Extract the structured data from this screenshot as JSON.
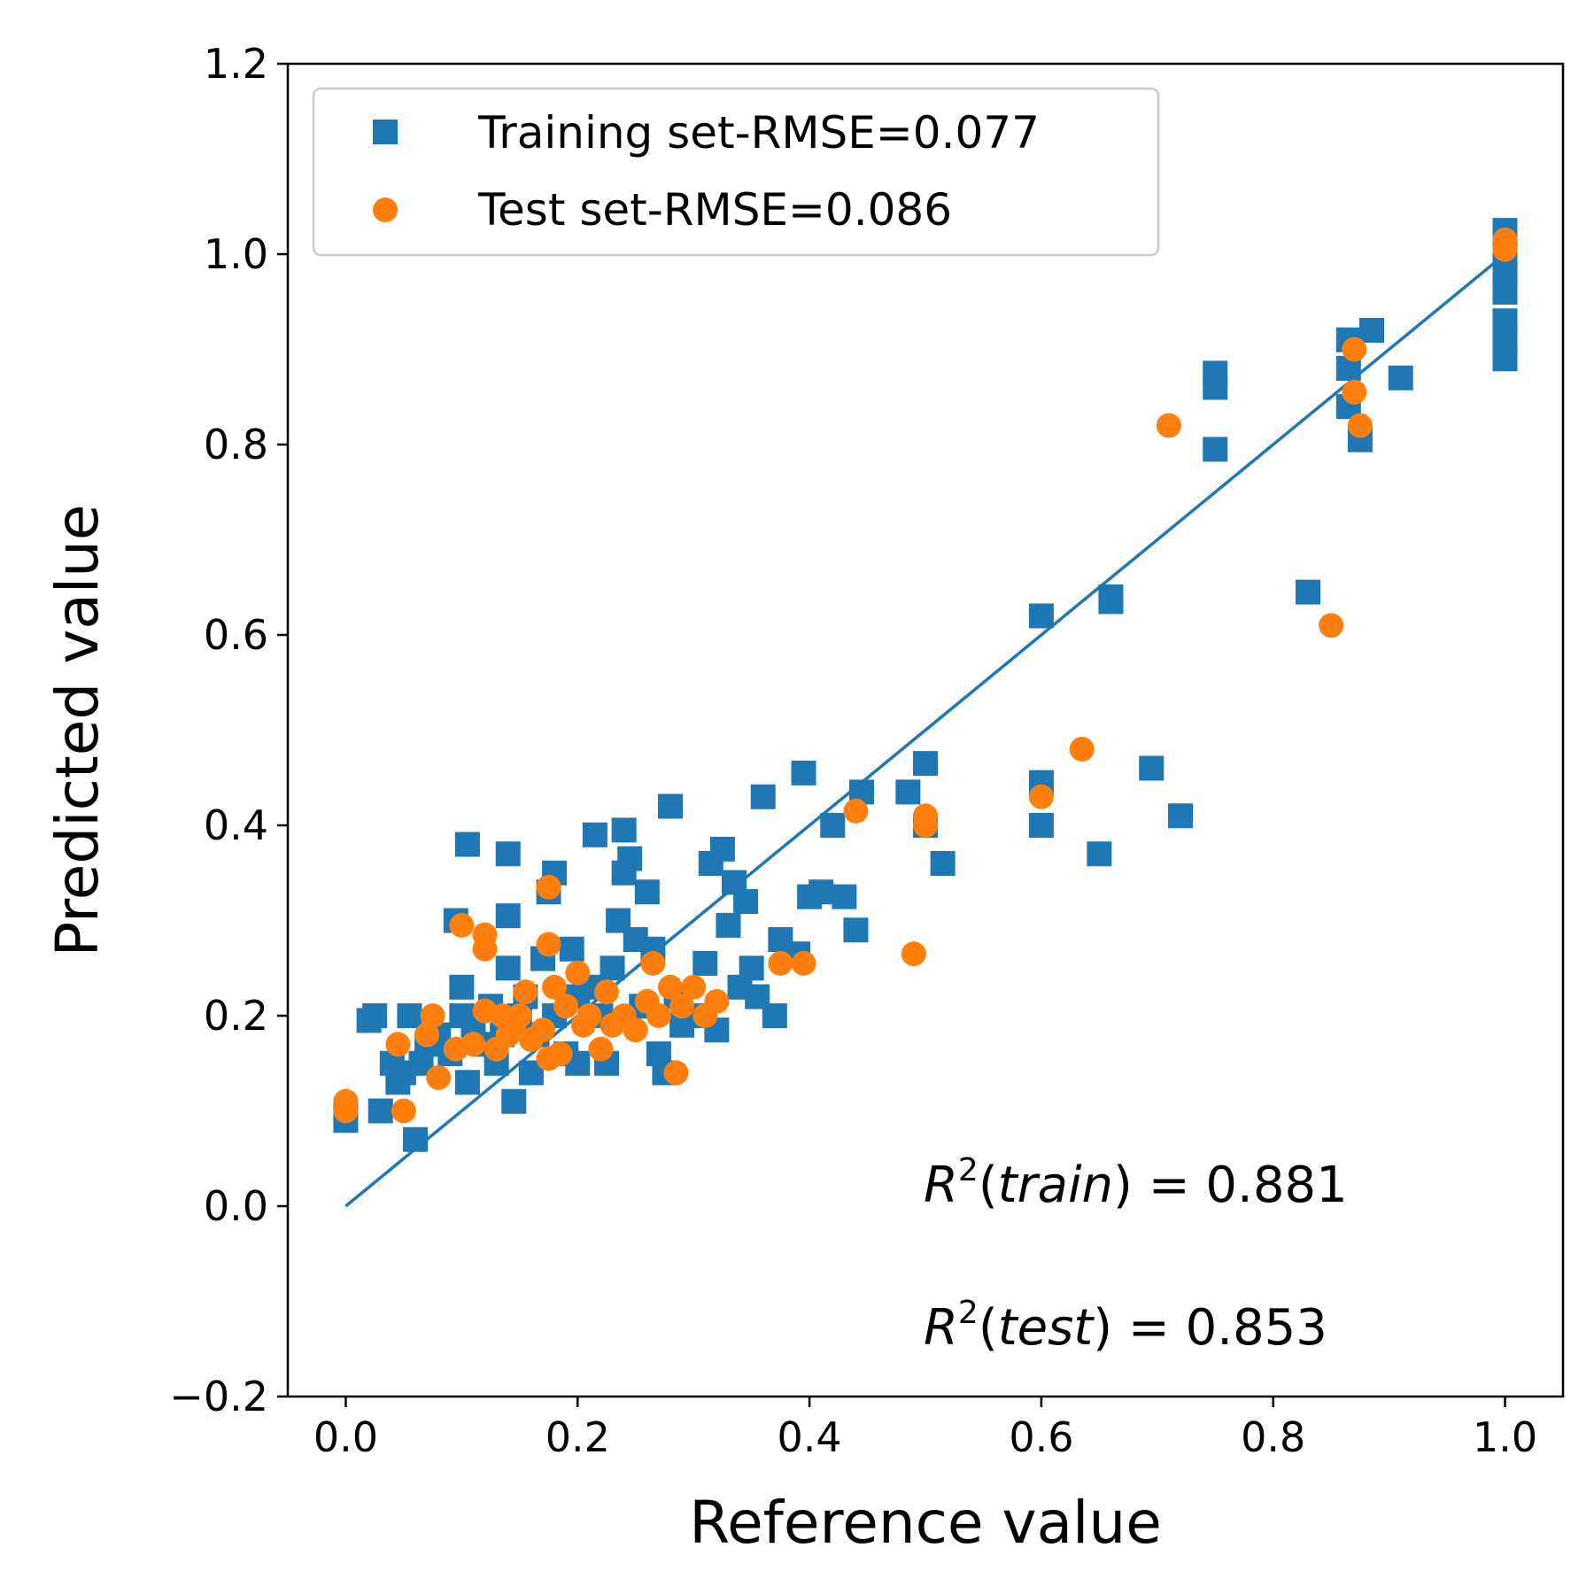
{
  "chart_data": {
    "type": "scatter",
    "xlabel": "Reference value",
    "ylabel": "Predicted value",
    "xlim": [
      -0.05,
      1.05
    ],
    "ylim": [
      -0.2,
      1.2
    ],
    "xticks": [
      "0.0",
      "0.2",
      "0.4",
      "0.6",
      "0.8",
      "1.0"
    ],
    "yticks": [
      "−0.2",
      "0.0",
      "0.2",
      "0.4",
      "0.6",
      "0.8",
      "1.0",
      "1.2"
    ],
    "xtick_values": [
      0.0,
      0.2,
      0.4,
      0.6,
      0.8,
      1.0
    ],
    "ytick_values": [
      -0.2,
      0.0,
      0.2,
      0.4,
      0.6,
      0.8,
      1.0,
      1.2
    ],
    "legend_position": "upper-left",
    "reference_line": {
      "x": [
        0,
        1
      ],
      "y": [
        0,
        1
      ],
      "color": "#1f77b4"
    },
    "annotations": [
      {
        "prefix": "R",
        "sup": "2",
        "label": "train",
        "value": "= 0.881"
      },
      {
        "prefix": "R",
        "sup": "2",
        "label": "test",
        "value": "= 0.853"
      }
    ],
    "series": [
      {
        "name": "Training set-RMSE=0.077",
        "marker": "square",
        "color": "#1f77b4",
        "points": [
          [
            0.0,
            0.09
          ],
          [
            0.0,
            0.1
          ],
          [
            0.02,
            0.195
          ],
          [
            0.025,
            0.2
          ],
          [
            0.03,
            0.1
          ],
          [
            0.04,
            0.15
          ],
          [
            0.045,
            0.13
          ],
          [
            0.05,
            0.14
          ],
          [
            0.055,
            0.2
          ],
          [
            0.06,
            0.07
          ],
          [
            0.065,
            0.15
          ],
          [
            0.07,
            0.17
          ],
          [
            0.08,
            0.18
          ],
          [
            0.09,
            0.16
          ],
          [
            0.095,
            0.3
          ],
          [
            0.1,
            0.23
          ],
          [
            0.1,
            0.2
          ],
          [
            0.105,
            0.13
          ],
          [
            0.105,
            0.38
          ],
          [
            0.11,
            0.19
          ],
          [
            0.12,
            0.17
          ],
          [
            0.125,
            0.21
          ],
          [
            0.13,
            0.15
          ],
          [
            0.135,
            0.18
          ],
          [
            0.14,
            0.37
          ],
          [
            0.14,
            0.305
          ],
          [
            0.14,
            0.25
          ],
          [
            0.145,
            0.11
          ],
          [
            0.15,
            0.2
          ],
          [
            0.155,
            0.22
          ],
          [
            0.16,
            0.14
          ],
          [
            0.165,
            0.18
          ],
          [
            0.17,
            0.26
          ],
          [
            0.175,
            0.33
          ],
          [
            0.18,
            0.35
          ],
          [
            0.18,
            0.2
          ],
          [
            0.19,
            0.16
          ],
          [
            0.195,
            0.27
          ],
          [
            0.2,
            0.15
          ],
          [
            0.2,
            0.22
          ],
          [
            0.21,
            0.23
          ],
          [
            0.215,
            0.39
          ],
          [
            0.22,
            0.2
          ],
          [
            0.225,
            0.15
          ],
          [
            0.23,
            0.25
          ],
          [
            0.235,
            0.3
          ],
          [
            0.24,
            0.395
          ],
          [
            0.24,
            0.35
          ],
          [
            0.245,
            0.365
          ],
          [
            0.25,
            0.28
          ],
          [
            0.255,
            0.21
          ],
          [
            0.26,
            0.33
          ],
          [
            0.265,
            0.27
          ],
          [
            0.27,
            0.16
          ],
          [
            0.275,
            0.14
          ],
          [
            0.28,
            0.42
          ],
          [
            0.285,
            0.22
          ],
          [
            0.29,
            0.19
          ],
          [
            0.3,
            0.2
          ],
          [
            0.31,
            0.255
          ],
          [
            0.315,
            0.36
          ],
          [
            0.32,
            0.185
          ],
          [
            0.325,
            0.375
          ],
          [
            0.33,
            0.295
          ],
          [
            0.335,
            0.34
          ],
          [
            0.34,
            0.23
          ],
          [
            0.345,
            0.32
          ],
          [
            0.35,
            0.25
          ],
          [
            0.355,
            0.22
          ],
          [
            0.36,
            0.43
          ],
          [
            0.37,
            0.2
          ],
          [
            0.375,
            0.28
          ],
          [
            0.39,
            0.265
          ],
          [
            0.395,
            0.455
          ],
          [
            0.4,
            0.325
          ],
          [
            0.41,
            0.33
          ],
          [
            0.42,
            0.4
          ],
          [
            0.43,
            0.325
          ],
          [
            0.44,
            0.29
          ],
          [
            0.445,
            0.435
          ],
          [
            0.485,
            0.435
          ],
          [
            0.5,
            0.465
          ],
          [
            0.5,
            0.4
          ],
          [
            0.515,
            0.36
          ],
          [
            0.6,
            0.445
          ],
          [
            0.6,
            0.62
          ],
          [
            0.6,
            0.4
          ],
          [
            0.65,
            0.37
          ],
          [
            0.66,
            0.64
          ],
          [
            0.66,
            0.635
          ],
          [
            0.695,
            0.46
          ],
          [
            0.72,
            0.41
          ],
          [
            0.75,
            0.875
          ],
          [
            0.75,
            0.86
          ],
          [
            0.75,
            0.795
          ],
          [
            0.83,
            0.645
          ],
          [
            0.865,
            0.91
          ],
          [
            0.865,
            0.88
          ],
          [
            0.865,
            0.84
          ],
          [
            0.875,
            0.805
          ],
          [
            0.885,
            0.92
          ],
          [
            0.91,
            0.87
          ],
          [
            1.0,
            1.025
          ],
          [
            1.0,
            1.0
          ],
          [
            1.0,
            0.98
          ],
          [
            1.0,
            0.96
          ],
          [
            1.0,
            0.93
          ],
          [
            1.0,
            0.91
          ],
          [
            1.0,
            0.89
          ]
        ]
      },
      {
        "name": "Test set-RMSE=0.086",
        "marker": "circle",
        "color": "#ff7f0e",
        "points": [
          [
            0.0,
            0.11
          ],
          [
            0.0,
            0.1
          ],
          [
            0.045,
            0.17
          ],
          [
            0.05,
            0.1
          ],
          [
            0.07,
            0.18
          ],
          [
            0.075,
            0.2
          ],
          [
            0.08,
            0.135
          ],
          [
            0.095,
            0.165
          ],
          [
            0.1,
            0.295
          ],
          [
            0.11,
            0.17
          ],
          [
            0.12,
            0.205
          ],
          [
            0.12,
            0.285
          ],
          [
            0.12,
            0.27
          ],
          [
            0.13,
            0.165
          ],
          [
            0.135,
            0.2
          ],
          [
            0.14,
            0.18
          ],
          [
            0.145,
            0.19
          ],
          [
            0.15,
            0.2
          ],
          [
            0.155,
            0.225
          ],
          [
            0.16,
            0.175
          ],
          [
            0.17,
            0.185
          ],
          [
            0.175,
            0.155
          ],
          [
            0.175,
            0.275
          ],
          [
            0.175,
            0.335
          ],
          [
            0.18,
            0.23
          ],
          [
            0.185,
            0.16
          ],
          [
            0.19,
            0.21
          ],
          [
            0.2,
            0.245
          ],
          [
            0.205,
            0.19
          ],
          [
            0.21,
            0.2
          ],
          [
            0.22,
            0.165
          ],
          [
            0.225,
            0.225
          ],
          [
            0.23,
            0.19
          ],
          [
            0.24,
            0.2
          ],
          [
            0.25,
            0.185
          ],
          [
            0.26,
            0.215
          ],
          [
            0.265,
            0.255
          ],
          [
            0.27,
            0.2
          ],
          [
            0.28,
            0.23
          ],
          [
            0.285,
            0.14
          ],
          [
            0.29,
            0.21
          ],
          [
            0.3,
            0.23
          ],
          [
            0.31,
            0.2
          ],
          [
            0.32,
            0.215
          ],
          [
            0.375,
            0.255
          ],
          [
            0.395,
            0.255
          ],
          [
            0.44,
            0.415
          ],
          [
            0.49,
            0.265
          ],
          [
            0.5,
            0.41
          ],
          [
            0.5,
            0.4
          ],
          [
            0.6,
            0.43
          ],
          [
            0.635,
            0.48
          ],
          [
            0.71,
            0.82
          ],
          [
            0.85,
            0.61
          ],
          [
            0.87,
            0.9
          ],
          [
            0.87,
            0.855
          ],
          [
            0.875,
            0.82
          ],
          [
            1.0,
            1.015
          ],
          [
            1.0,
            1.005
          ]
        ]
      }
    ]
  }
}
